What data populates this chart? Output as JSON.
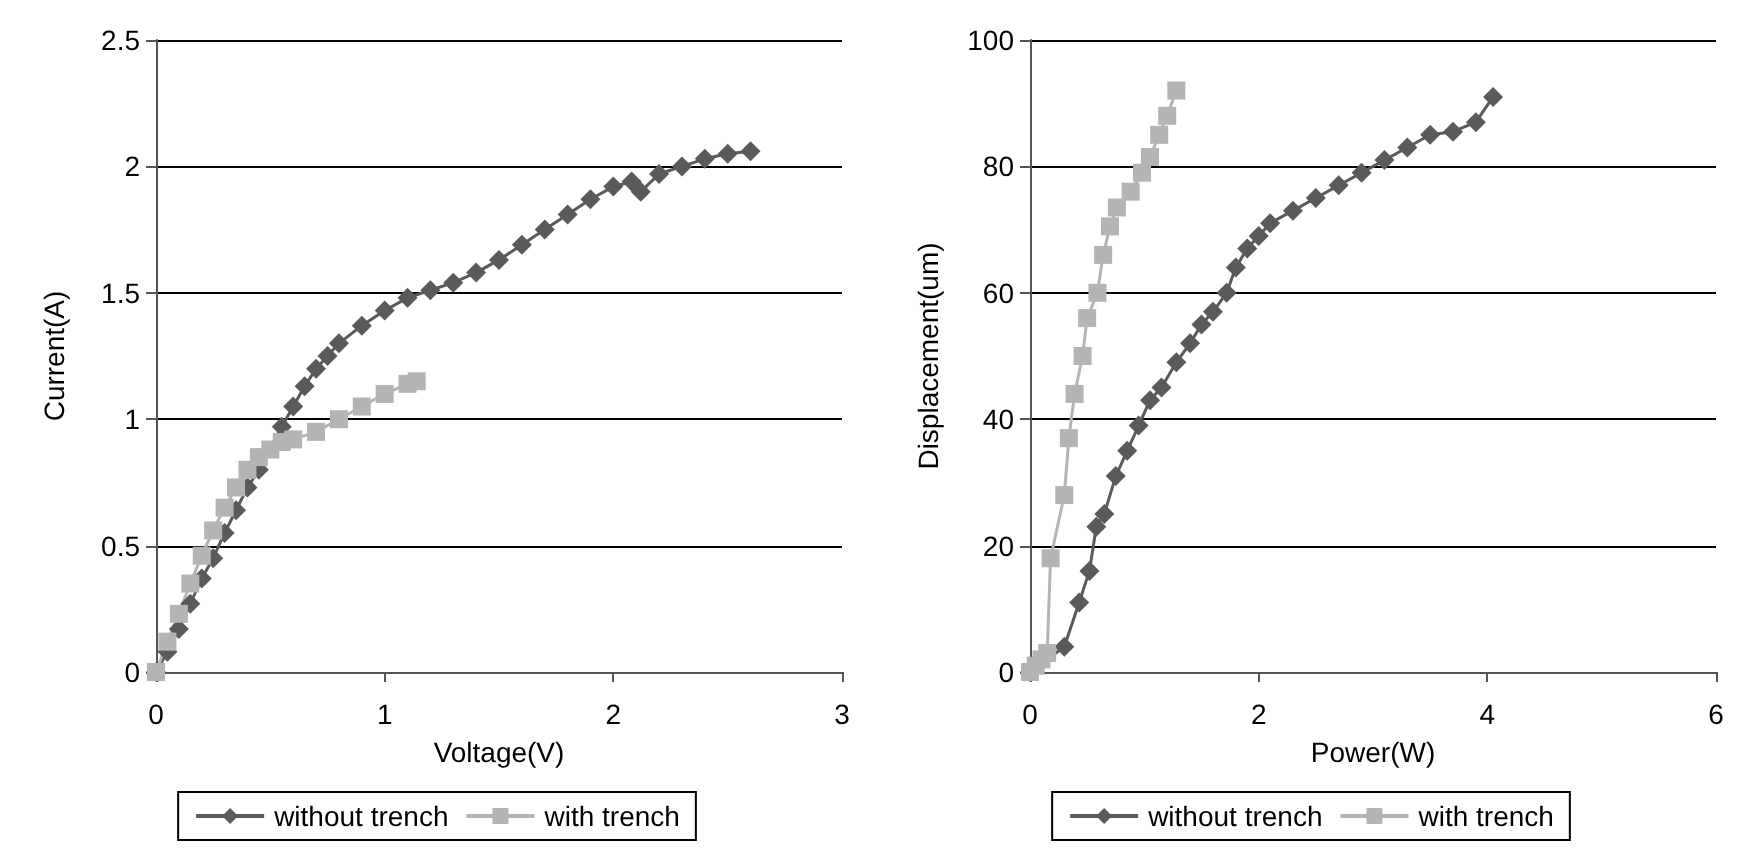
{
  "chart_data": [
    {
      "type": "line",
      "xlabel": "Voltage(V)",
      "ylabel": "Current(A)",
      "xlim": [
        0,
        3
      ],
      "xticks": [
        0,
        1,
        2,
        3
      ],
      "ylim": [
        0,
        2.5
      ],
      "yticks": [
        0,
        0.5,
        1,
        1.5,
        2,
        2.5
      ],
      "grid": "y",
      "legend": "bottom",
      "series": [
        {
          "name": "without trench",
          "color": "#5a5a5a",
          "marker": "diamond",
          "x": [
            0,
            0.05,
            0.1,
            0.15,
            0.2,
            0.25,
            0.3,
            0.35,
            0.4,
            0.45,
            0.55,
            0.6,
            0.65,
            0.7,
            0.75,
            0.8,
            0.9,
            1.0,
            1.1,
            1.2,
            1.3,
            1.4,
            1.5,
            1.6,
            1.7,
            1.8,
            1.9,
            2.0,
            2.08,
            2.12,
            2.2,
            2.3,
            2.4,
            2.5,
            2.6
          ],
          "values": [
            0,
            0.08,
            0.17,
            0.27,
            0.37,
            0.45,
            0.55,
            0.64,
            0.73,
            0.8,
            0.97,
            1.05,
            1.13,
            1.2,
            1.25,
            1.3,
            1.37,
            1.43,
            1.48,
            1.51,
            1.54,
            1.58,
            1.63,
            1.69,
            1.75,
            1.81,
            1.87,
            1.92,
            1.94,
            1.9,
            1.97,
            2.0,
            2.03,
            2.05,
            2.06
          ]
        },
        {
          "name": "with trench",
          "color": "#b4b4b4",
          "marker": "square",
          "x": [
            0,
            0.05,
            0.1,
            0.15,
            0.2,
            0.25,
            0.3,
            0.35,
            0.4,
            0.45,
            0.5,
            0.55,
            0.6,
            0.7,
            0.8,
            0.9,
            1.0,
            1.1,
            1.14
          ],
          "values": [
            0,
            0.12,
            0.23,
            0.35,
            0.46,
            0.56,
            0.65,
            0.73,
            0.8,
            0.85,
            0.88,
            0.91,
            0.92,
            0.95,
            1.0,
            1.05,
            1.1,
            1.14,
            1.15
          ]
        }
      ]
    },
    {
      "type": "line",
      "xlabel": "Power(W)",
      "ylabel": "Displacement(um)",
      "xlim": [
        0,
        6
      ],
      "xticks": [
        0,
        2,
        4,
        6
      ],
      "ylim": [
        0,
        100
      ],
      "yticks": [
        0,
        20,
        40,
        60,
        80,
        100
      ],
      "grid": "y",
      "legend": "bottom",
      "series": [
        {
          "name": "without trench",
          "color": "#5a5a5a",
          "marker": "diamond",
          "x": [
            0,
            0.3,
            0.43,
            0.52,
            0.58,
            0.65,
            0.75,
            0.85,
            0.95,
            1.05,
            1.15,
            1.28,
            1.4,
            1.5,
            1.6,
            1.72,
            1.8,
            1.9,
            2.0,
            2.1,
            2.3,
            2.5,
            2.7,
            2.9,
            3.1,
            3.3,
            3.5,
            3.7,
            3.9,
            4.05
          ],
          "values": [
            0,
            4,
            11,
            16,
            23,
            25,
            31,
            35,
            39,
            43,
            45,
            49,
            52,
            55,
            57,
            60,
            64,
            67,
            69,
            71,
            73,
            75,
            77,
            79,
            81,
            83,
            85,
            85.5,
            87,
            91
          ]
        },
        {
          "name": "with trench",
          "color": "#b4b4b4",
          "marker": "square",
          "x": [
            0,
            0.05,
            0.1,
            0.15,
            0.18,
            0.3,
            0.34,
            0.39,
            0.46,
            0.5,
            0.59,
            0.64,
            0.7,
            0.76,
            0.88,
            0.98,
            1.05,
            1.13,
            1.2,
            1.28
          ],
          "values": [
            0,
            1,
            2,
            3,
            18,
            28,
            37,
            44,
            50,
            56,
            60,
            66,
            70.5,
            73.5,
            76,
            79,
            81.5,
            85,
            88,
            92
          ]
        }
      ]
    }
  ]
}
